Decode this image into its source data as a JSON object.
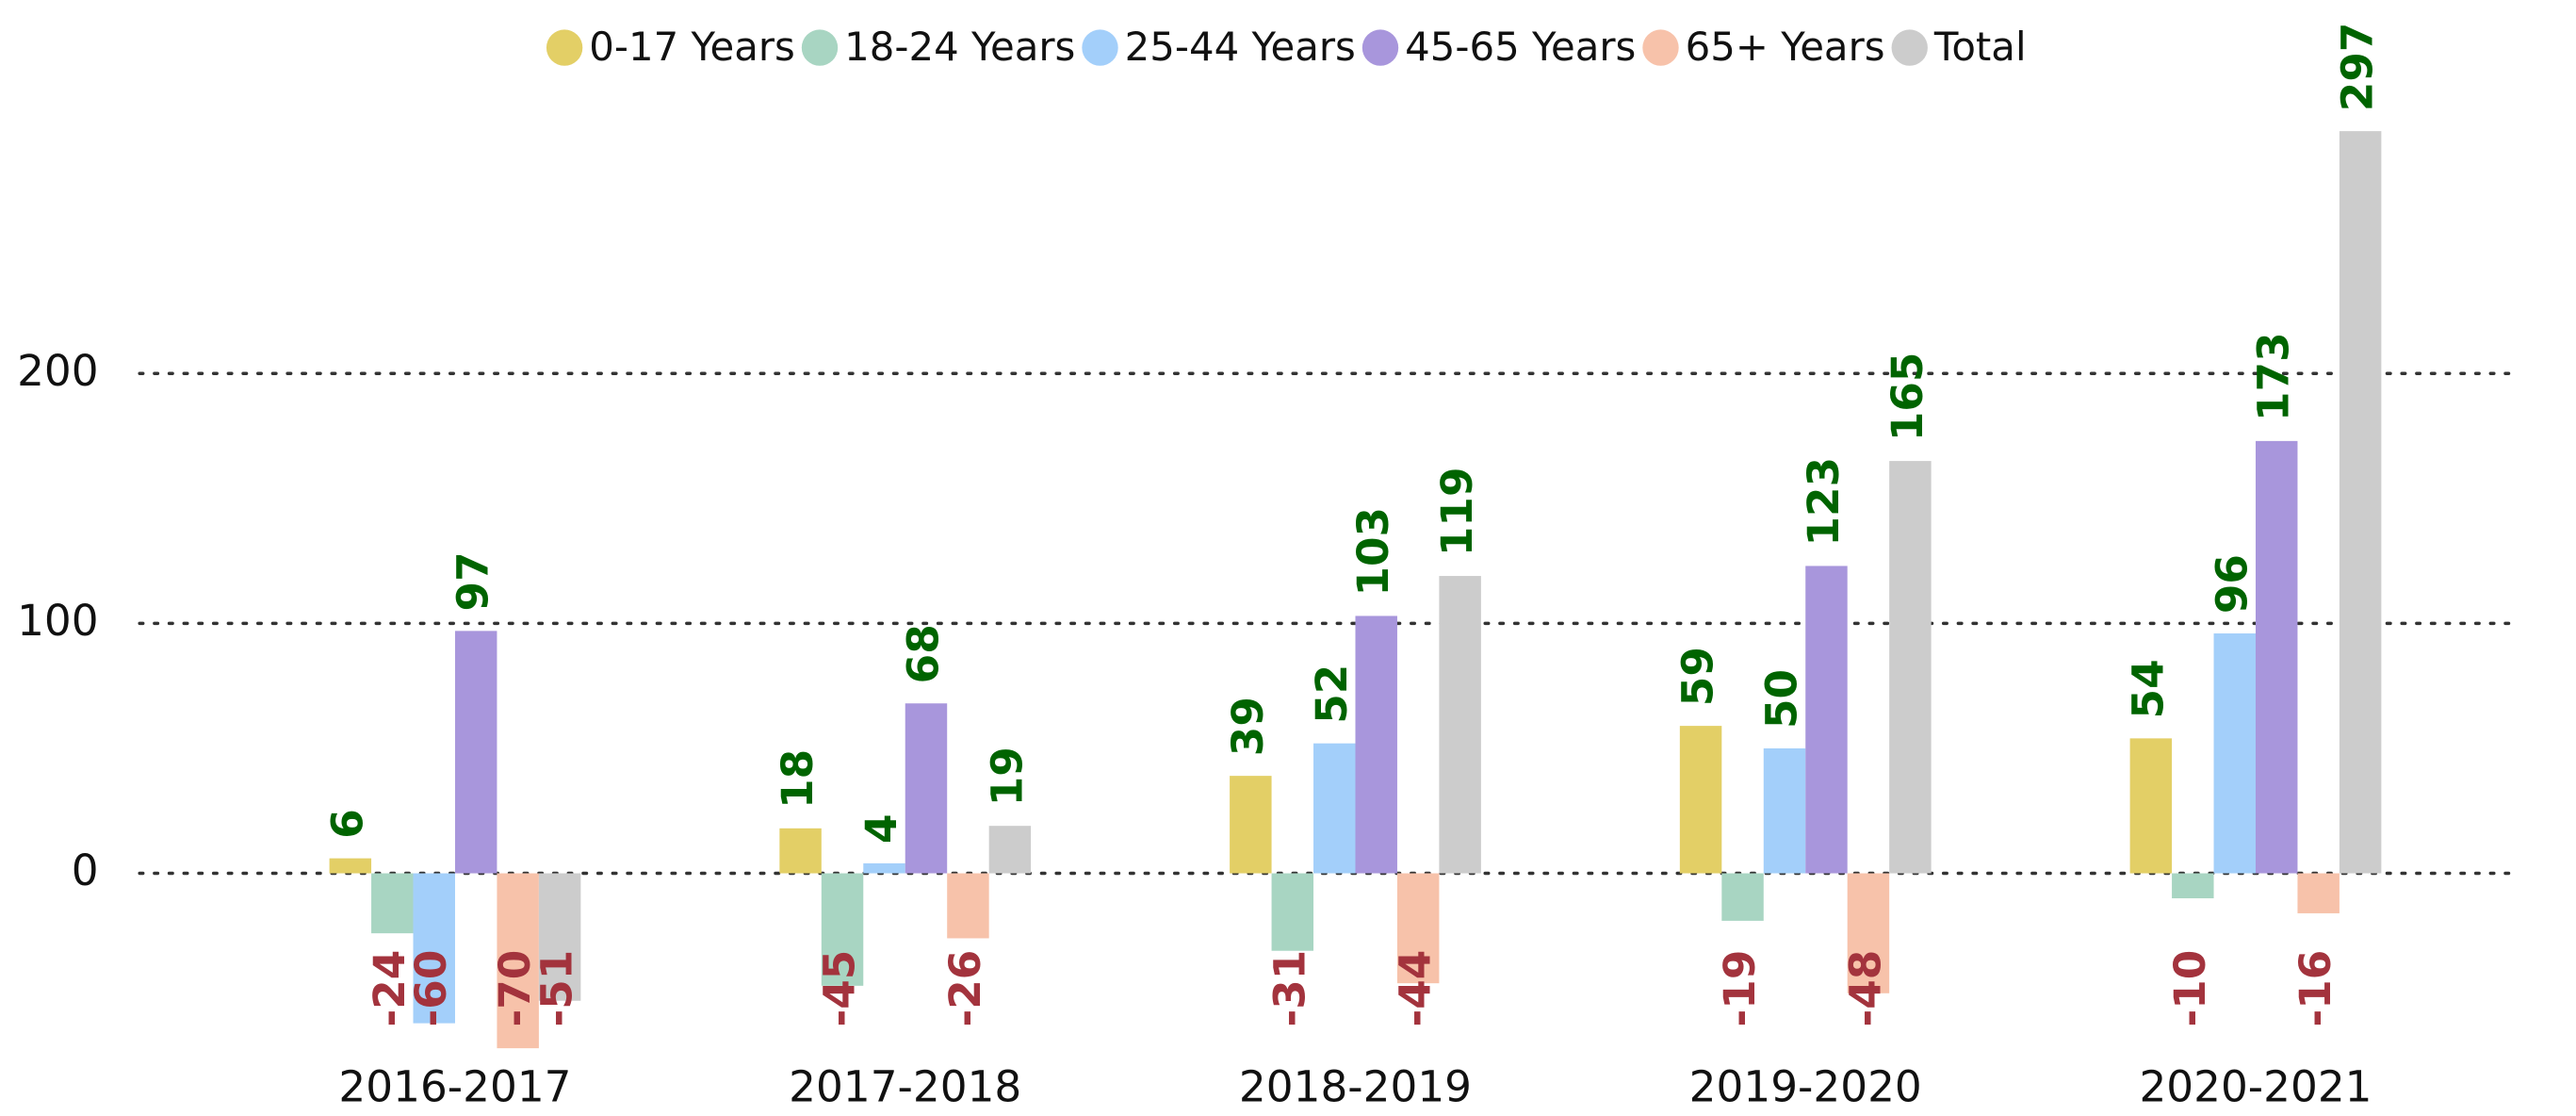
{
  "chart_data": {
    "type": "bar",
    "categories": [
      "2016-2017",
      "2017-2018",
      "2018-2019",
      "2019-2020",
      "2020-2021"
    ],
    "series": [
      {
        "name": "0-17 Years",
        "color": "#e3cf66",
        "values": [
          6,
          18,
          39,
          59,
          54
        ]
      },
      {
        "name": "18-24 Years",
        "color": "#a8d5c2",
        "values": [
          -24,
          -45,
          -31,
          -19,
          -10
        ]
      },
      {
        "name": "25-44 Years",
        "color": "#a3cffa",
        "values": [
          -60,
          4,
          52,
          50,
          96
        ]
      },
      {
        "name": "45-65 Years",
        "color": "#a896dc",
        "values": [
          97,
          68,
          103,
          123,
          173
        ]
      },
      {
        "name": "65+ Years",
        "color": "#f7c2aa",
        "values": [
          -70,
          -26,
          -44,
          -48,
          -16
        ]
      },
      {
        "name": "Total",
        "color": "#cccccc",
        "values": [
          -51,
          19,
          119,
          165,
          297
        ]
      }
    ],
    "ylim": [
      -80,
      310
    ],
    "yticks": [
      0,
      100,
      200
    ],
    "grid": true,
    "legend": "top"
  }
}
